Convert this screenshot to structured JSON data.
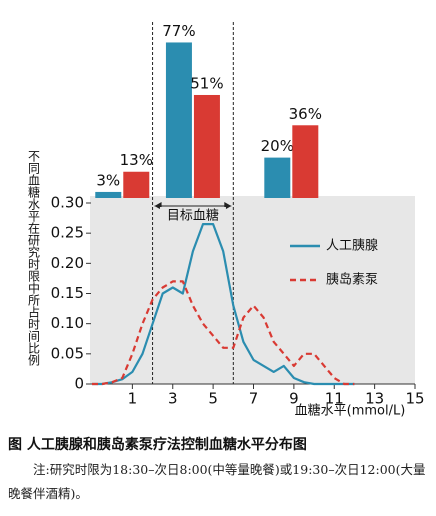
{
  "chart_data": [
    {
      "type": "bar",
      "categories": [
        null,
        null,
        null
      ],
      "series": [
        {
          "color": "#2b8db0",
          "values": [
            3,
            77,
            20
          ],
          "value_labels": [
            "3%",
            "77%",
            "20%"
          ]
        },
        {
          "color": "#d93a33",
          "values": [
            13,
            51,
            36
          ],
          "value_labels": [
            "13%",
            "51%",
            "36%"
          ]
        }
      ]
    },
    {
      "type": "line",
      "x_label": "血糖水平(mmol/L)",
      "y_label": "不同血糖水平在研究时限中所占时间比例",
      "x": [
        -1,
        -0.5,
        0,
        0.5,
        1,
        1.5,
        2,
        2.5,
        3,
        3.5,
        4,
        4.5,
        5,
        5.5,
        6,
        6.5,
        7,
        7.5,
        8,
        8.5,
        9,
        9.5,
        10,
        10.5,
        11,
        11.5,
        12
      ],
      "series": [
        {
          "name": "人工胰腺",
          "color": "#2b8db0",
          "dashed": false,
          "values": [
            0,
            0,
            0.003,
            0.008,
            0.02,
            0.05,
            0.1,
            0.15,
            0.16,
            0.15,
            0.22,
            0.265,
            0.265,
            0.22,
            0.13,
            0.07,
            0.04,
            0.03,
            0.02,
            0.03,
            0.01,
            0.003,
            0,
            0,
            0,
            0,
            0
          ]
        },
        {
          "name": "胰岛素泵",
          "color": "#d93a33",
          "dashed": true,
          "values": [
            0,
            0,
            0.003,
            0.01,
            0.05,
            0.1,
            0.14,
            0.16,
            0.17,
            0.17,
            0.13,
            0.1,
            0.08,
            0.06,
            0.06,
            0.11,
            0.13,
            0.11,
            0.07,
            0.05,
            0.03,
            0.05,
            0.05,
            0.03,
            0.01,
            0,
            0
          ]
        }
      ],
      "xlim": [
        -1,
        15
      ],
      "xticks": [
        1,
        3,
        5,
        7,
        9,
        11,
        13,
        15
      ],
      "ylim": [
        0,
        0.3
      ],
      "yticks": [
        0,
        0.05,
        {
          "value": 0.1,
          "label": "0.10"
        },
        0.15,
        {
          "value": 0.2,
          "label": "0.20"
        },
        0.25,
        {
          "value": 0.3,
          "label": "0.30"
        }
      ],
      "target_range": [
        2,
        6
      ],
      "target_label": "目标血糖",
      "legend": "right"
    }
  ],
  "caption": "图 人工胰腺和胰岛素泵疗法控制血糖水平分布图",
  "note": "注:研究时限为18:30–次日8:00(中等量晚餐)或19:30–次日12:00(大量晚餐伴酒精)。"
}
